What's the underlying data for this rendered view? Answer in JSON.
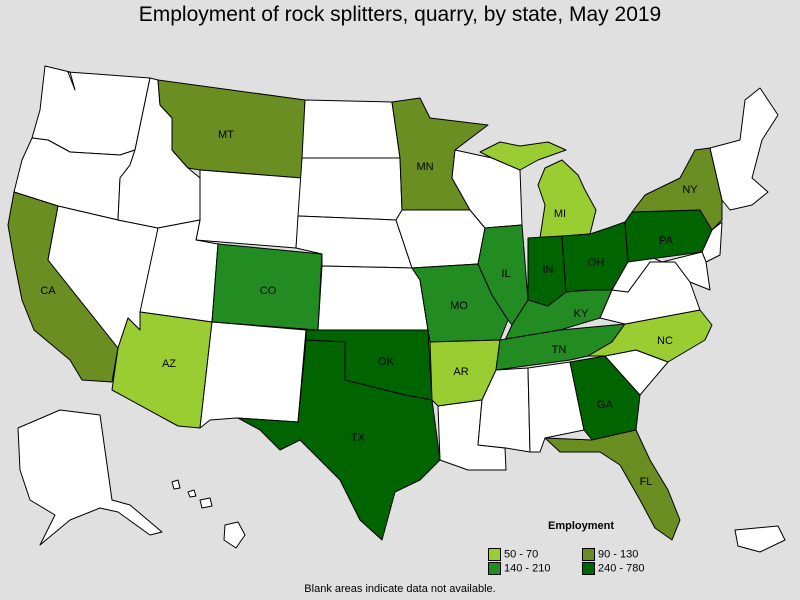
{
  "title": "Employment of rock splitters, quarry, by state, May 2019",
  "note": "Blank areas indicate data not available.",
  "colors": {
    "blank": "#ffffff",
    "c1": "#9acd32",
    "c2": "#228b22",
    "c3": "#6b8e23",
    "c4": "#006400"
  },
  "legend": {
    "title": "Employment",
    "items": [
      {
        "label": "50 - 70",
        "color": "#9acd32"
      },
      {
        "label": "90 - 130",
        "color": "#6b8e23"
      },
      {
        "label": "140 - 210",
        "color": "#228b22"
      },
      {
        "label": "240 - 780",
        "color": "#006400"
      }
    ]
  },
  "labels": {
    "WA": "",
    "OR": "",
    "CA": "CA",
    "NV": "",
    "ID": "",
    "MT": "MT",
    "WY": "",
    "UT": "",
    "AZ": "AZ",
    "CO": "CO",
    "NM": "",
    "ND": "",
    "SD": "",
    "NE": "",
    "KS": "",
    "OK": "OK",
    "TX": "TX",
    "MN": "MN",
    "IA": "",
    "MO": "MO",
    "AR": "AR",
    "LA": "",
    "WI": "",
    "IL": "IL",
    "MI": "MI",
    "IN": "IN",
    "OH": "OH",
    "KY": "KY",
    "TN": "TN",
    "MS": "",
    "AL": "",
    "GA": "GA",
    "FL": "FL",
    "SC": "",
    "NC": "NC",
    "VA": "",
    "WV": "",
    "PA": "PA",
    "NY": "NY",
    "ME": "",
    "AK": "",
    "HI": "",
    "PR": ""
  }
}
